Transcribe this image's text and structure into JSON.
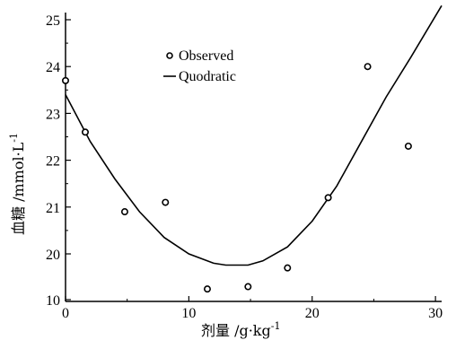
{
  "chart_data": {
    "type": "scatter",
    "xlabel": "剂量 /g·kg",
    "xlabel_sup": "-1",
    "ylabel": "血糖 /mmol·L",
    "ylabel_sup": "-1",
    "xlim": [
      0,
      30.5
    ],
    "ylim": [
      10,
      25.3
    ],
    "x_ticks": [
      0,
      10,
      20,
      30
    ],
    "y_ticks": [
      10,
      20,
      21,
      22,
      23,
      24,
      25
    ],
    "y_tick_labels": [
      "10",
      "20",
      "21",
      "22",
      "23",
      "24",
      "25"
    ],
    "y_axis_break": {
      "from": 10,
      "to": 19
    },
    "legend": {
      "position": "top-center",
      "entries": [
        {
          "label": "Observed",
          "marker": "circle"
        },
        {
          "label": "Quodratic",
          "marker": "line"
        }
      ]
    },
    "series": [
      {
        "name": "Observed",
        "kind": "scatter",
        "points": [
          {
            "x": 0,
            "y": 23.7
          },
          {
            "x": 1.6,
            "y": 22.6
          },
          {
            "x": 4.8,
            "y": 20.9
          },
          {
            "x": 8.1,
            "y": 21.1
          },
          {
            "x": 11.5,
            "y": 19.25
          },
          {
            "x": 14.8,
            "y": 19.3
          },
          {
            "x": 18.0,
            "y": 19.7
          },
          {
            "x": 21.3,
            "y": 21.2
          },
          {
            "x": 24.5,
            "y": 24.0
          },
          {
            "x": 27.8,
            "y": 22.3
          }
        ]
      },
      {
        "name": "Quodratic",
        "kind": "line",
        "points": [
          {
            "x": 0,
            "y": 23.4
          },
          {
            "x": 2,
            "y": 22.4
          },
          {
            "x": 4,
            "y": 21.6
          },
          {
            "x": 6,
            "y": 20.9
          },
          {
            "x": 8,
            "y": 20.35
          },
          {
            "x": 10,
            "y": 20.0
          },
          {
            "x": 12,
            "y": 19.8
          },
          {
            "x": 13,
            "y": 19.76
          },
          {
            "x": 14.8,
            "y": 19.76
          },
          {
            "x": 16,
            "y": 19.85
          },
          {
            "x": 18,
            "y": 20.15
          },
          {
            "x": 20,
            "y": 20.7
          },
          {
            "x": 22,
            "y": 21.45
          },
          {
            "x": 24,
            "y": 22.4
          },
          {
            "x": 26,
            "y": 23.35
          },
          {
            "x": 28,
            "y": 24.2
          },
          {
            "x": 30.5,
            "y": 25.3
          }
        ]
      }
    ]
  }
}
